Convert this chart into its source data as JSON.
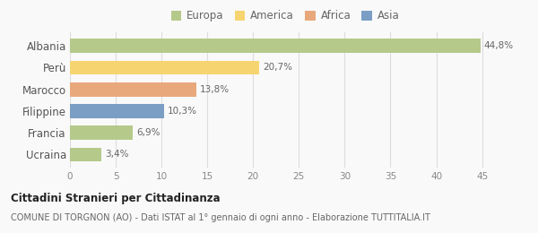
{
  "categories": [
    "Albania",
    "Perù",
    "Marocco",
    "Filippine",
    "Francia",
    "Ucraina"
  ],
  "values": [
    44.8,
    20.7,
    13.8,
    10.3,
    6.9,
    3.4
  ],
  "labels": [
    "44,8%",
    "20,7%",
    "13,8%",
    "10,3%",
    "6,9%",
    "3,4%"
  ],
  "colors": [
    "#b5c98a",
    "#f6d470",
    "#e8a87c",
    "#7a9ec4",
    "#b5c98a",
    "#b5c98a"
  ],
  "legend_items": [
    {
      "label": "Europa",
      "color": "#b5c98a"
    },
    {
      "label": "America",
      "color": "#f6d470"
    },
    {
      "label": "Africa",
      "color": "#e8a87c"
    },
    {
      "label": "Asia",
      "color": "#7a9ec4"
    }
  ],
  "xlim": [
    0,
    47
  ],
  "xticks": [
    0,
    5,
    10,
    15,
    20,
    25,
    30,
    35,
    40,
    45
  ],
  "title": "Cittadini Stranieri per Cittadinanza",
  "subtitle": "COMUNE DI TORGNON (AO) - Dati ISTAT al 1° gennaio di ogni anno - Elaborazione TUTTITALIA.IT",
  "background_color": "#f9f9f9",
  "grid_color": "#dddddd"
}
